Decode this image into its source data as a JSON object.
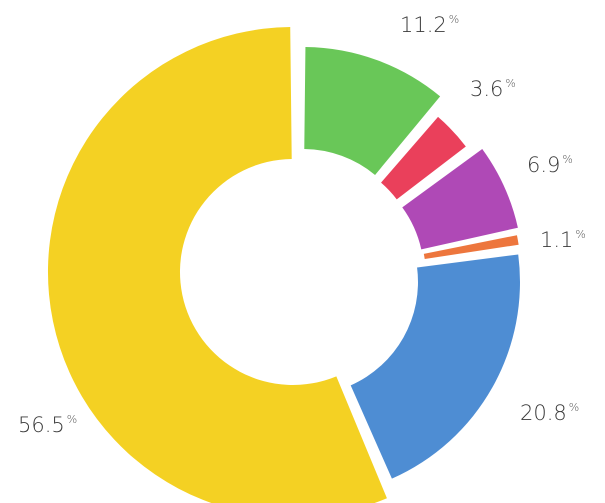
{
  "chart_data": {
    "type": "pie",
    "donut": true,
    "title": "",
    "legend": "none",
    "percent_symbol": "%",
    "slices": [
      {
        "label": "11.2",
        "value": 11.2,
        "color": "#5cc24a"
      },
      {
        "label": "3.6",
        "value": 3.6,
        "color": "#e8304d"
      },
      {
        "label": "6.9",
        "value": 6.9,
        "color": "#a83ab0"
      },
      {
        "label": "1.1",
        "value": 1.1,
        "color": "#ec6a2c"
      },
      {
        "label": "20.8",
        "value": 20.8,
        "color": "#3f83cf"
      },
      {
        "label": "56.5",
        "value": 56.5,
        "color": "#f3cd10"
      }
    ]
  }
}
